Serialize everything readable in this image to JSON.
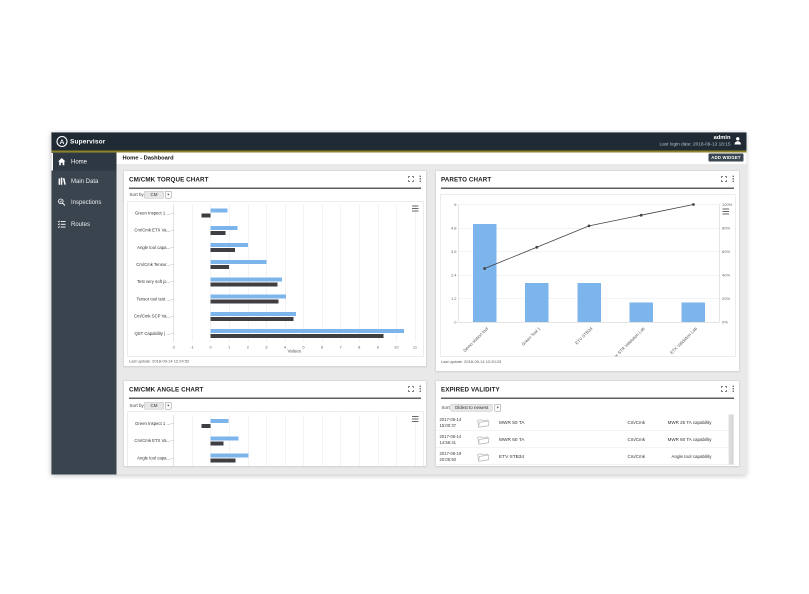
{
  "app": {
    "product_name": "Supervisor",
    "logo_letter": "A",
    "user": "admin",
    "last_login": "Last login date: 2018-09-13 18:15"
  },
  "breadcrumb": "Home - Dashboard",
  "add_widget_label": "ADD WIDGET",
  "sidebar": {
    "items": [
      {
        "label": "Home",
        "icon": "home-icon",
        "active": true
      },
      {
        "label": "Main Data",
        "icon": "main-data-icon",
        "active": false
      },
      {
        "label": "Inspections",
        "icon": "inspections-icon",
        "active": false
      },
      {
        "label": "Routes",
        "icon": "routes-icon",
        "active": false
      }
    ]
  },
  "colors": {
    "topbar": "#202a34",
    "accent_gold": "#8e8227",
    "sidebar": "#3a444e",
    "content_bg": "#e9e9e9",
    "bar_blue": "#7cb5ec",
    "bar_dark": "#3e3e43",
    "pareto_line": "#434348"
  },
  "panels": {
    "torque": {
      "title": "CM/CMK TORQUE CHART",
      "sort_label": "Sort by",
      "sort_value": "CM",
      "last_update": "Last update: 2018-09-14 12:24:52"
    },
    "pareto": {
      "title": "PARETO CHART",
      "last_update": "Last update: 2018-09-14 12:20:23"
    },
    "angle": {
      "title": "CM/CMK ANGLE CHART",
      "sort_label": "Sort by",
      "sort_value": "CM"
    },
    "expired": {
      "title": "EXPIRED VALIDITY",
      "sort_label": "Sort",
      "sort_value": "Oldest to newest",
      "rows": [
        {
          "date": "2017-06-14",
          "time": "15:00:37",
          "name": "MWR 50 TA",
          "type": "Cm/Cmk",
          "capability": "MWR 25 TA capability"
        },
        {
          "date": "2017-06-14",
          "time": "14:56:41",
          "name": "MWR 60 TA",
          "type": "Cm/Cmk",
          "capability": "MWR 60 TA capability"
        },
        {
          "date": "2017-06-19",
          "time": "20:05:50",
          "name": "ETV STB34",
          "type": "Cm/Cmk",
          "capability": "Angle tool capability"
        }
      ]
    }
  },
  "chart_data": [
    {
      "id": "torque",
      "type": "bar",
      "orientation": "horizontal",
      "title": "CM/CMK TORQUE CHART",
      "categories": [
        "Green Inspect 1 ...",
        "Cm/Cmk ETX Va...",
        "Angle tool capa...",
        "Cm/Cmk Tensor...",
        "Test very soft jo...",
        "Tensor tool test ...",
        "Cm/Cmk SCP Va...",
        "QST Capability | ..."
      ],
      "series": [
        {
          "name": "Cm",
          "color": "#7cb5ec",
          "values": [
            0.9,
            1.45,
            2.0,
            3.0,
            3.85,
            4.05,
            4.6,
            10.4
          ]
        },
        {
          "name": "Cmk",
          "color": "#3e3e43",
          "values": [
            -0.5,
            0.8,
            1.3,
            1.0,
            3.6,
            3.65,
            4.45,
            9.3
          ]
        }
      ],
      "xlabel": "Values",
      "xlim": [
        -2,
        11
      ],
      "xticks": [
        -2,
        -1,
        0,
        1,
        2,
        3,
        4,
        5,
        6,
        7,
        8,
        9,
        10,
        11
      ],
      "grid": true
    },
    {
      "id": "pareto",
      "type": "pareto",
      "title": "PARETO CHART",
      "categories": [
        "Demo station tool",
        "Green Tool 1",
        "ETV STB34",
        "Tensor STR Validation Lab",
        "ETX Validation Lab"
      ],
      "bar_values": [
        5,
        2,
        2,
        1,
        1
      ],
      "cumulative_percent": [
        45.5,
        63.6,
        81.8,
        90.9,
        100
      ],
      "ylim_left": [
        0,
        6
      ],
      "yticks_left": [
        0,
        1.2,
        2.4,
        3.6,
        4.8,
        6
      ],
      "ylim_right": [
        0,
        100
      ],
      "yticks_right": [
        "0%",
        "20%",
        "40%",
        "60%",
        "80%",
        "100%"
      ],
      "bar_color": "#7cb5ec",
      "line_color": "#434348",
      "grid": true
    },
    {
      "id": "angle",
      "type": "bar",
      "orientation": "horizontal",
      "title": "CM/CMK ANGLE CHART",
      "categories": [
        "Green Inspect 1 ...",
        "Cm/Cmk ETX Va...",
        "Angle tool capa..."
      ],
      "series": [
        {
          "name": "Cm",
          "color": "#7cb5ec",
          "values": [
            0.95,
            1.5,
            2.05
          ]
        },
        {
          "name": "Cmk",
          "color": "#3e3e43",
          "values": [
            -0.5,
            0.7,
            1.35
          ]
        }
      ],
      "xlim": [
        -2,
        11
      ],
      "xticks": [
        -2,
        -1,
        0,
        1,
        2,
        3,
        4,
        5,
        6,
        7,
        8,
        9,
        10,
        11
      ],
      "grid": true,
      "clipped_by_viewport": true
    }
  ]
}
